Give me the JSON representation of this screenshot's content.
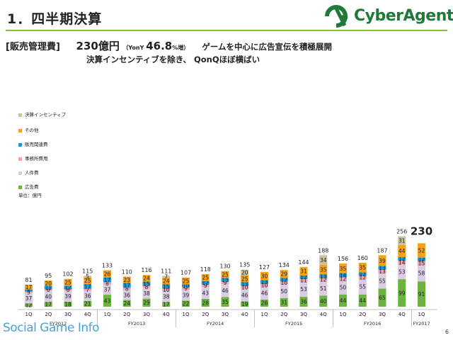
{
  "header": {
    "title": "1．四半期決算",
    "logo_text": "CyberAgent."
  },
  "subtitle": {
    "bracket": "[販売管理費]",
    "amount": "230億円",
    "yoy_prefix": "（YonY ",
    "yoy_value": "46.8",
    "yoy_suffix": "%増）",
    "note1": "ゲームを中心に広告宣伝を積極展開",
    "note2": "決算インセンティブを除き、 QonQほぼ横ばい"
  },
  "legend": [
    {
      "label": "決算インセンティブ",
      "color": "#c9c39e"
    },
    {
      "label": "その他",
      "color": "#f6a21b"
    },
    {
      "label": "販売関連費",
      "color": "#1d9ad6"
    },
    {
      "label": "事務所費用",
      "color": "#f2a3ad"
    },
    {
      "label": "人件費",
      "color": "#d9cce3"
    },
    {
      "label": "広告費",
      "color": "#6cb33f"
    }
  ],
  "unit_label": "単位：億円",
  "watermark": "Social Game Info",
  "page_number": "6",
  "chart_data": {
    "type": "bar",
    "stacked": true,
    "categories": [
      "1Q",
      "2Q",
      "3Q",
      "4Q",
      "1Q",
      "2Q",
      "3Q",
      "4Q",
      "1Q",
      "2Q",
      "3Q",
      "4Q",
      "1Q",
      "2Q",
      "3Q",
      "4Q",
      "1Q",
      "2Q",
      "3Q",
      "4Q",
      "1Q"
    ],
    "fiscal_years": [
      {
        "label": "FY2012",
        "count": 4
      },
      {
        "label": "FY2013",
        "count": 4
      },
      {
        "label": "FY2014",
        "count": 4
      },
      {
        "label": "FY2015",
        "count": 4
      },
      {
        "label": "FY2016",
        "count": 4
      },
      {
        "label": "FY2017",
        "count": 1
      }
    ],
    "series": [
      {
        "name": "広告費",
        "color": "#6cb33f",
        "values": [
          12,
          17,
          18,
          21,
          43,
          24,
          29,
          17,
          22,
          28,
          35,
          19,
          26,
          31,
          36,
          40,
          44,
          44,
          65,
          99,
          91
        ]
      },
      {
        "name": "人件費",
        "color": "#d9cce3",
        "values": [
          37,
          40,
          39,
          36,
          37,
          36,
          38,
          38,
          39,
          43,
          46,
          46,
          46,
          50,
          53,
          51,
          50,
          55,
          55,
          53,
          58
        ]
      },
      {
        "name": "事務所費用",
        "color": "#f2a3ad",
        "values": [
          5,
          6,
          6,
          7,
          8,
          8,
          8,
          10,
          9,
          9,
          9,
          10,
          10,
          10,
          11,
          12,
          12,
          12,
          13,
          14,
          15
        ]
      },
      {
        "name": "販売関連費",
        "color": "#1d9ad6",
        "values": [
          8,
          11,
          12,
          17,
          17,
          17,
          15,
          15,
          10,
          12,
          13,
          13,
          13,
          12,
          12,
          13,
          14,
          12,
          13,
          12,
          12
        ]
      },
      {
        "name": "その他",
        "color": "#f6a21b",
        "values": [
          17,
          20,
          25,
          25,
          26,
          23,
          24,
          24,
          25,
          25,
          25,
          25,
          30,
          29,
          31,
          35,
          35,
          35,
          39,
          44,
          52
        ]
      },
      {
        "name": "決算インセンティブ",
        "color": "#c9c39e",
        "values": [
          0,
          0,
          0,
          5,
          0,
          0,
          0,
          7,
          0,
          0,
          0,
          20,
          0,
          0,
          0,
          34,
          0,
          0,
          0,
          31,
          0
        ]
      }
    ],
    "totals": [
      81,
      95,
      102,
      115,
      133,
      110,
      116,
      111,
      107,
      118,
      130,
      135,
      127,
      134,
      144,
      188,
      156,
      160,
      187,
      256,
      230
    ],
    "highlight_total_index": 20,
    "ylim": [
      0,
      260
    ]
  }
}
